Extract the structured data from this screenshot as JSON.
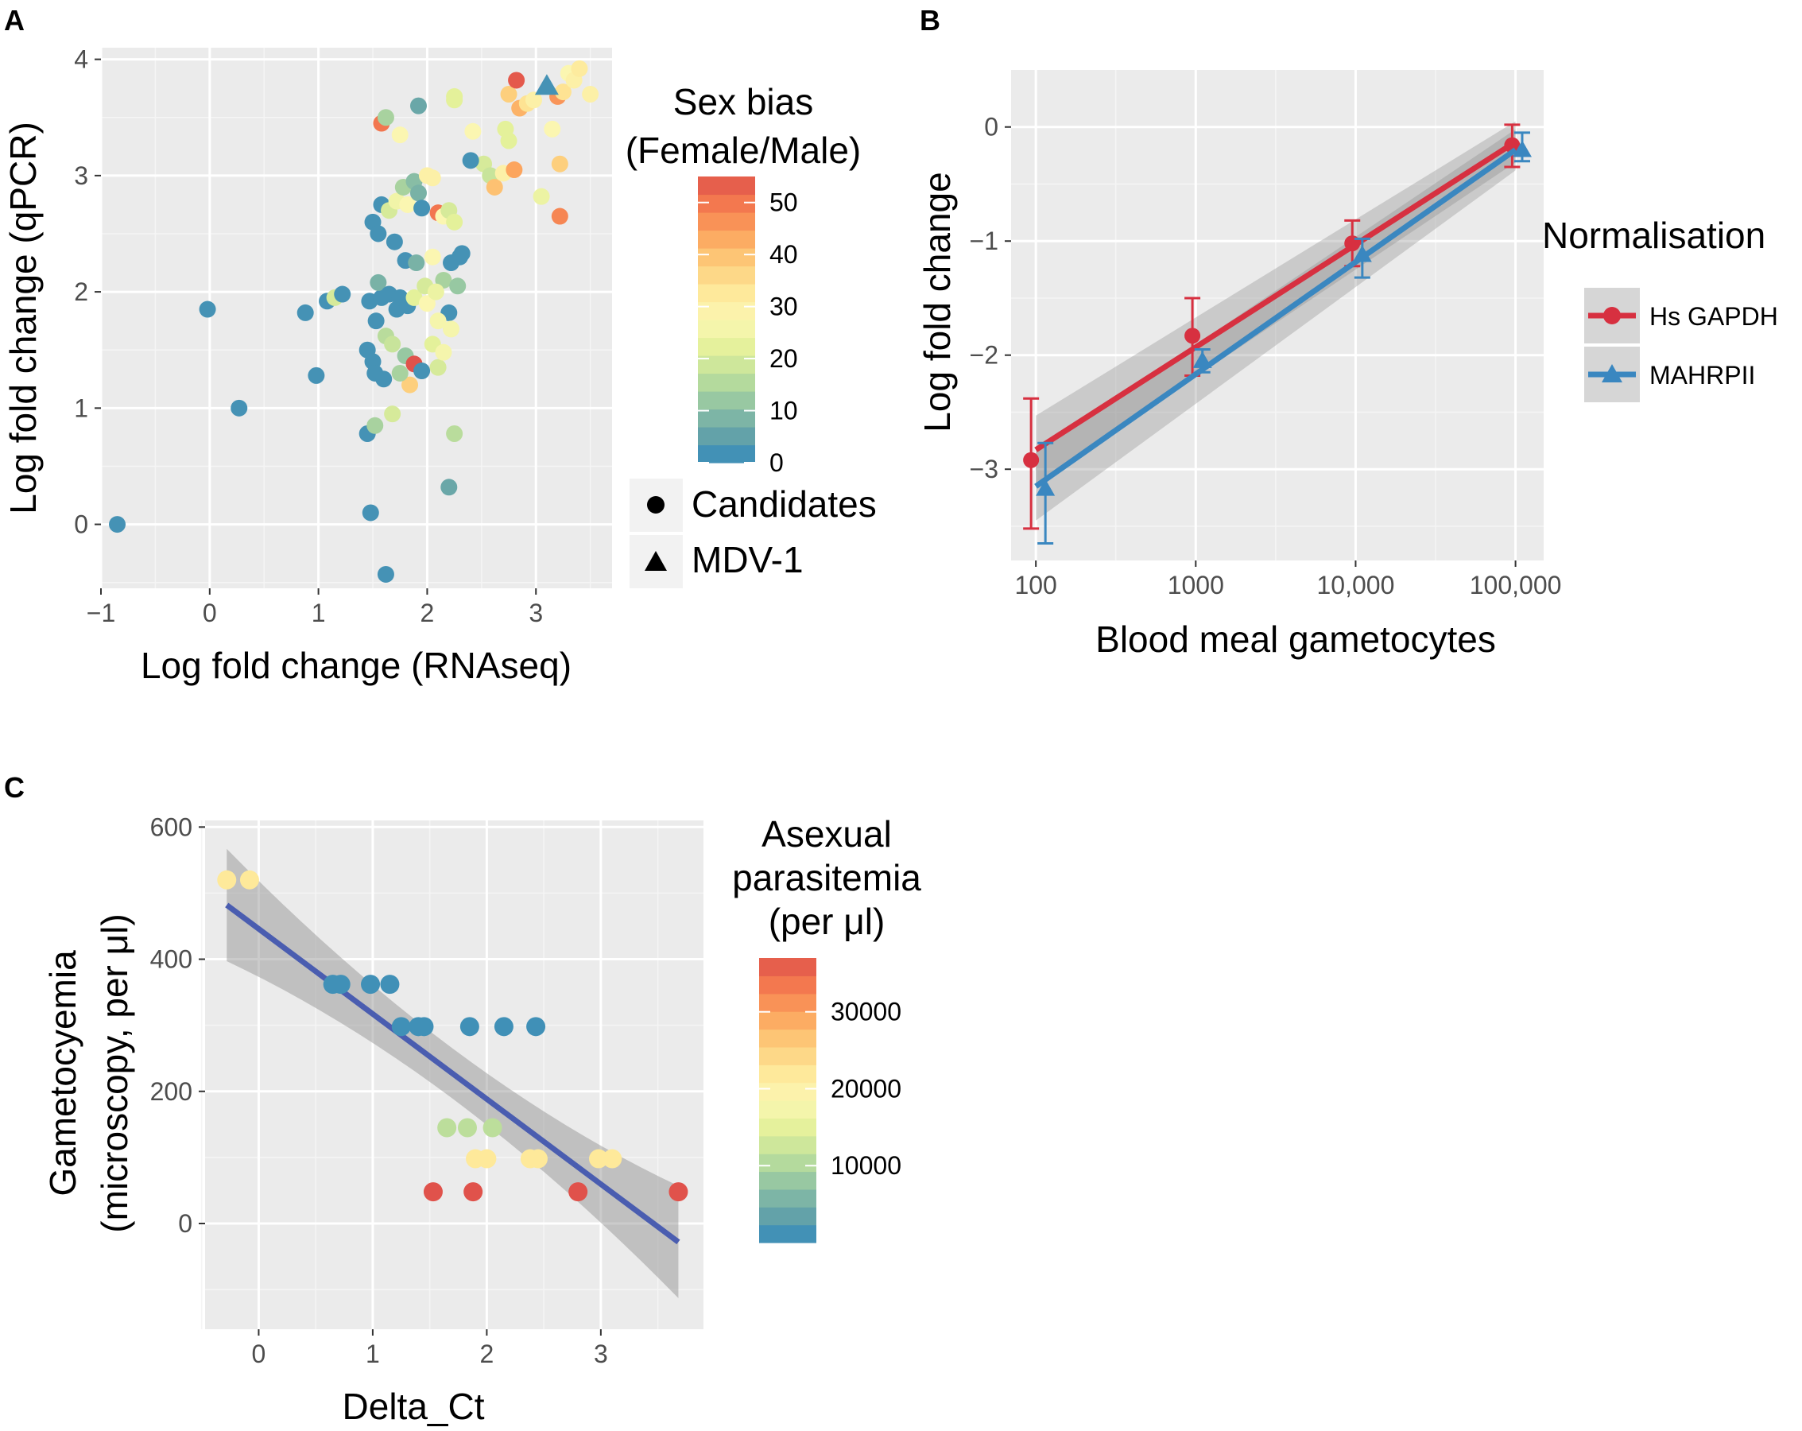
{
  "figure": {
    "panels": [
      "A",
      "B",
      "C"
    ]
  },
  "colors": {
    "panel_bg": "#ebebeb",
    "grid_major": "#ffffff",
    "red": "#d73040",
    "blue": "#3a87c0",
    "regression": "#4a5db0",
    "ribbon": "#8c8c8c"
  },
  "chart_data": [
    {
      "id": "A",
      "type": "scatter",
      "title": "",
      "xlabel": "Log fold change (RNAseq)",
      "ylabel": "Log fold change (qPCR)",
      "xlim": [
        -1.0,
        3.7
      ],
      "ylim": [
        -0.55,
        4.1
      ],
      "xticks": [
        -1,
        0,
        1,
        2,
        3
      ],
      "xtick_labels": [
        "−1",
        "0",
        "1",
        "2",
        "3"
      ],
      "yticks": [
        0,
        1,
        2,
        3,
        4
      ],
      "ytick_labels": [
        "0",
        "1",
        "2",
        "3",
        "4"
      ],
      "color_legend": {
        "title_lines": [
          "Sex bias",
          "(Female/Male)"
        ],
        "range": [
          0,
          55
        ],
        "ticks": [
          0,
          10,
          20,
          30,
          40,
          50
        ],
        "tick_labels": [
          "0",
          "10",
          "20",
          "30",
          "40",
          "50"
        ]
      },
      "shape_legend": [
        {
          "label": "Candidates",
          "shape": "circle"
        },
        {
          "label": "MDV-1",
          "shape": "triangle"
        }
      ],
      "series": [
        {
          "name": "Candidates",
          "shape": "circle",
          "points": [
            [
              -0.85,
              0.0,
              2
            ],
            [
              -0.02,
              1.85,
              2
            ],
            [
              0.27,
              1.0,
              2
            ],
            [
              0.88,
              1.82,
              2
            ],
            [
              0.98,
              1.28,
              2
            ],
            [
              1.08,
              1.92,
              2
            ],
            [
              1.15,
              1.95,
              20
            ],
            [
              1.22,
              1.98,
              2
            ],
            [
              1.45,
              0.78,
              2
            ],
            [
              1.48,
              0.1,
              2
            ],
            [
              1.62,
              -0.43,
              2
            ],
            [
              1.45,
              1.5,
              2
            ],
            [
              1.5,
              1.4,
              2
            ],
            [
              1.52,
              1.3,
              2
            ],
            [
              1.6,
              1.25,
              2
            ],
            [
              1.47,
              1.92,
              2
            ],
            [
              1.53,
              1.75,
              2
            ],
            [
              1.58,
              1.95,
              2
            ],
            [
              1.55,
              2.08,
              8
            ],
            [
              1.65,
              1.98,
              2
            ],
            [
              1.72,
              1.85,
              2
            ],
            [
              1.75,
              1.95,
              2
            ],
            [
              1.5,
              2.6,
              2
            ],
            [
              1.55,
              2.5,
              2
            ],
            [
              1.58,
              2.75,
              2
            ],
            [
              1.65,
              2.7,
              20
            ],
            [
              1.7,
              2.43,
              2
            ],
            [
              1.72,
              2.78,
              25
            ],
            [
              1.78,
              2.9,
              14
            ],
            [
              1.82,
              2.75,
              28
            ],
            [
              1.88,
              2.95,
              10
            ],
            [
              1.92,
              2.85,
              8
            ],
            [
              1.95,
              2.72,
              2
            ],
            [
              2.0,
              3.0,
              30
            ],
            [
              2.05,
              2.98,
              30
            ],
            [
              2.1,
              2.68,
              50
            ],
            [
              2.15,
              2.65,
              28
            ],
            [
              2.2,
              2.7,
              20
            ],
            [
              2.25,
              2.6,
              22
            ],
            [
              2.3,
              2.3,
              2
            ],
            [
              2.32,
              2.33,
              2
            ],
            [
              2.22,
              2.25,
              2
            ],
            [
              2.15,
              2.1,
              14
            ],
            [
              2.28,
              2.05,
              12
            ],
            [
              2.2,
              1.82,
              2
            ],
            [
              2.1,
              1.75,
              26
            ],
            [
              2.22,
              1.68,
              26
            ],
            [
              1.82,
              1.88,
              2
            ],
            [
              1.88,
              1.95,
              22
            ],
            [
              1.98,
              2.05,
              20
            ],
            [
              2.0,
              1.9,
              28
            ],
            [
              1.62,
              1.62,
              16
            ],
            [
              1.68,
              1.55,
              18
            ],
            [
              1.8,
              1.45,
              12
            ],
            [
              1.84,
              1.2,
              38
            ],
            [
              1.88,
              1.38,
              55
            ],
            [
              1.95,
              1.32,
              2
            ],
            [
              2.05,
              1.55,
              22
            ],
            [
              2.1,
              1.35,
              20
            ],
            [
              2.15,
              1.48,
              26
            ],
            [
              1.75,
              1.3,
              14
            ],
            [
              1.68,
              0.95,
              20
            ],
            [
              1.52,
              0.85,
              14
            ],
            [
              2.25,
              0.78,
              16
            ],
            [
              2.2,
              0.32,
              6
            ],
            [
              1.58,
              3.45,
              50
            ],
            [
              1.62,
              3.5,
              14
            ],
            [
              1.92,
              3.6,
              6
            ],
            [
              1.75,
              3.35,
              28
            ],
            [
              2.25,
              3.65,
              22
            ],
            [
              2.25,
              3.68,
              22
            ],
            [
              2.42,
              3.38,
              28
            ],
            [
              2.52,
              3.1,
              20
            ],
            [
              2.58,
              3.0,
              18
            ],
            [
              2.62,
              2.9,
              40
            ],
            [
              2.7,
              3.02,
              30
            ],
            [
              2.72,
              3.4,
              22
            ],
            [
              2.75,
              3.3,
              22
            ],
            [
              2.8,
              3.05,
              44
            ],
            [
              2.75,
              3.7,
              38
            ],
            [
              2.82,
              3.82,
              54
            ],
            [
              2.85,
              3.58,
              42
            ],
            [
              2.92,
              3.62,
              34
            ],
            [
              2.98,
              3.65,
              30
            ],
            [
              3.05,
              2.82,
              24
            ],
            [
              3.15,
              3.4,
              28
            ],
            [
              3.2,
              3.68,
              46
            ],
            [
              3.25,
              3.72,
              34
            ],
            [
              3.3,
              3.88,
              28
            ],
            [
              3.35,
              3.82,
              30
            ],
            [
              3.4,
              3.92,
              32
            ],
            [
              3.5,
              3.7,
              30
            ],
            [
              3.22,
              3.1,
              38
            ],
            [
              3.22,
              2.65,
              48
            ],
            [
              2.4,
              3.13,
              2
            ],
            [
              1.8,
              2.27,
              2
            ],
            [
              1.9,
              2.25,
              8
            ],
            [
              2.05,
              2.3,
              28
            ],
            [
              2.08,
              2.0,
              24
            ]
          ]
        },
        {
          "name": "MDV-1",
          "shape": "triangle",
          "points": [
            [
              3.1,
              3.77,
              2
            ]
          ]
        }
      ]
    },
    {
      "id": "B",
      "type": "line",
      "title": "",
      "xlabel": "Blood meal gametocytes",
      "ylabel": "Log fold change",
      "xscale": "log10",
      "xlim": [
        70,
        150000
      ],
      "ylim": [
        -3.8,
        0.5
      ],
      "xticks": [
        100,
        1000,
        10000,
        100000
      ],
      "xtick_labels": [
        "100",
        "1000",
        "10,000",
        "100,000"
      ],
      "yticks": [
        -3,
        -2,
        -1,
        0
      ],
      "ytick_labels": [
        "−3",
        "−2",
        "−1",
        "0"
      ],
      "legend": {
        "title": "Normalisation",
        "placement": "right"
      },
      "series": [
        {
          "name": "Hs GAPDH",
          "color": "#d73040",
          "marker": "circle",
          "x": [
            100,
            1000,
            10000,
            100000
          ],
          "y": [
            -2.92,
            -1.83,
            -1.02,
            -0.16
          ],
          "err_low": [
            -3.52,
            -2.18,
            -1.22,
            -0.35
          ],
          "err_high": [
            -2.38,
            -1.5,
            -0.82,
            0.02
          ],
          "fit": [
            [
              100,
              -2.83
            ],
            [
              100000,
              -0.13
            ]
          ],
          "ribbon_half_width": [
            0.3,
            0.18
          ]
        },
        {
          "name": "MAHRPII",
          "color": "#3a87c0",
          "marker": "triangle",
          "x": [
            100,
            1000,
            10000,
            100000
          ],
          "y": [
            -3.17,
            -2.05,
            -1.12,
            -0.2
          ],
          "err_low": [
            -3.65,
            -2.15,
            -1.32,
            -0.3
          ],
          "err_high": [
            -2.77,
            -1.95,
            -0.98,
            -0.05
          ],
          "fit": [
            [
              100,
              -3.15
            ],
            [
              100000,
              -0.2
            ]
          ],
          "ribbon_half_width": [
            0.3,
            0.18
          ]
        }
      ]
    },
    {
      "id": "C",
      "type": "scatter",
      "title": "",
      "xlabel": "Delta_Ct",
      "ylabel_lines": [
        "Gametocyemia",
        "(microscopy, per μl)"
      ],
      "xlim": [
        -0.47,
        3.9
      ],
      "ylim": [
        -160,
        610
      ],
      "xticks": [
        0,
        1,
        2,
        3
      ],
      "xtick_labels": [
        "0",
        "1",
        "2",
        "3"
      ],
      "yticks": [
        0,
        200,
        400,
        600
      ],
      "ytick_labels": [
        "0",
        "200",
        "400",
        "600"
      ],
      "color_legend": {
        "title_lines": [
          "Asexual",
          "parasitemia",
          "(per μl)"
        ],
        "range": [
          0,
          37000
        ],
        "ticks": [
          10000,
          20000,
          30000
        ],
        "tick_labels": [
          "10000",
          "20000",
          "30000"
        ]
      },
      "regression": {
        "from": [
          -0.28,
          482
        ],
        "to": [
          3.68,
          -28
        ],
        "ribbon_half_width_ends": 85,
        "ribbon_half_width_mid": 38
      },
      "points": [
        [
          -0.28,
          520,
          22000
        ],
        [
          -0.08,
          520,
          22000
        ],
        [
          0.65,
          362,
          1000
        ],
        [
          0.72,
          362,
          1000
        ],
        [
          0.98,
          362,
          1000
        ],
        [
          1.15,
          362,
          1000
        ],
        [
          1.25,
          298,
          1000
        ],
        [
          1.4,
          298,
          1000
        ],
        [
          1.45,
          298,
          1000
        ],
        [
          1.85,
          298,
          1000
        ],
        [
          2.15,
          298,
          1000
        ],
        [
          2.43,
          298,
          1000
        ],
        [
          1.65,
          145,
          11000
        ],
        [
          1.83,
          145,
          11000
        ],
        [
          2.05,
          145,
          11000
        ],
        [
          1.9,
          98,
          22000
        ],
        [
          2.0,
          98,
          22000
        ],
        [
          2.38,
          98,
          22000
        ],
        [
          2.45,
          98,
          22000
        ],
        [
          2.98,
          98,
          22000
        ],
        [
          3.1,
          98,
          22000
        ],
        [
          1.53,
          48,
          37000
        ],
        [
          1.88,
          48,
          37000
        ],
        [
          2.8,
          48,
          37000
        ],
        [
          3.68,
          48,
          37000
        ]
      ]
    }
  ]
}
